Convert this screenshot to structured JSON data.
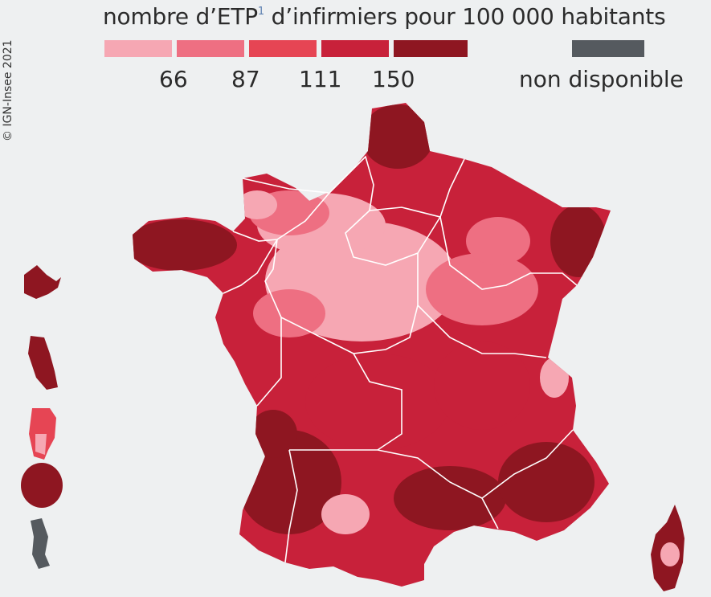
{
  "legend": {
    "title_main": "nombre d’ETP",
    "title_sup": "1",
    "title_rest": " d’infirmiers pour 100 000 habitants",
    "thresholds": [
      "66",
      "87",
      "111",
      "150"
    ],
    "classes": [
      {
        "color": "#f6a7b3"
      },
      {
        "color": "#ee6f82"
      },
      {
        "color": "#e64554"
      },
      {
        "color": "#c8213a"
      },
      {
        "color": "#8e1621"
      }
    ],
    "na": {
      "label": "non disponible",
      "color": "#555a5f"
    }
  },
  "credit": "© IGN-Insee 2021",
  "colors": {
    "background": "#eef0f1",
    "borders": "#ffffff"
  }
}
